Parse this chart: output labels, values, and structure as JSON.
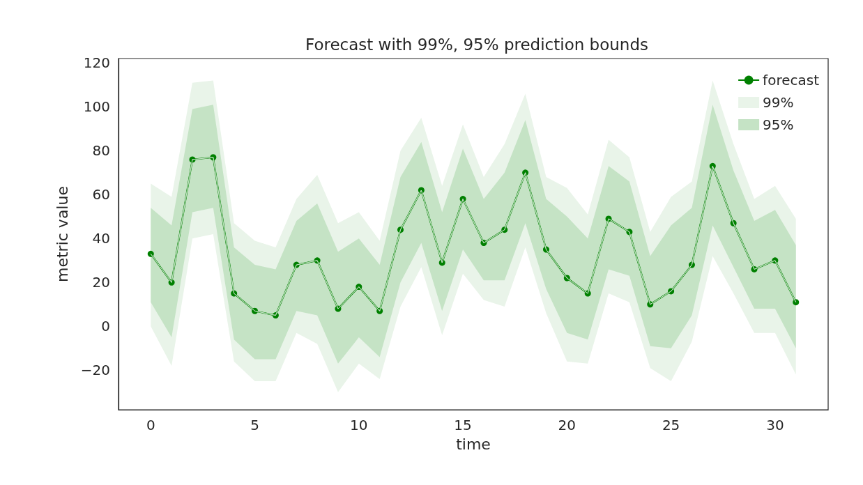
{
  "chart_data": {
    "type": "line",
    "title": "Forecast with 99%, 95% prediction bounds",
    "xlabel": "time",
    "ylabel": "metric value",
    "x": [
      0,
      1,
      2,
      3,
      4,
      5,
      6,
      7,
      8,
      9,
      10,
      11,
      12,
      13,
      14,
      15,
      16,
      17,
      18,
      19,
      20,
      21,
      22,
      23,
      24,
      25,
      26,
      27,
      28,
      29,
      30,
      31
    ],
    "series": [
      {
        "name": "forecast",
        "color": "#008000",
        "marker": "circle",
        "values": [
          33,
          20,
          76,
          77,
          15,
          7,
          5,
          28,
          30,
          8,
          18,
          7,
          44,
          62,
          29,
          58,
          38,
          44,
          70,
          35,
          22,
          15,
          49,
          43,
          10,
          16,
          28,
          73,
          47,
          26,
          30,
          11
        ]
      },
      {
        "name": "99%",
        "color": "#e9f4e9",
        "values": [
          33,
          20,
          76,
          77,
          15,
          7,
          5,
          28,
          30,
          8,
          18,
          7,
          44,
          62,
          29,
          58,
          38,
          44,
          70,
          35,
          22,
          15,
          49,
          43,
          10,
          16,
          28,
          73,
          47,
          26,
          30,
          11
        ],
        "lower": [
          0,
          -18,
          40,
          42,
          -16,
          -25,
          -25,
          -3,
          -8,
          -30,
          -17,
          -24,
          9,
          27,
          -4,
          24,
          12,
          9,
          36,
          6,
          -16,
          -17,
          15,
          11,
          -19,
          -25,
          -7,
          32,
          15,
          -3,
          -3,
          -22
        ],
        "upper": [
          65,
          59,
          111,
          112,
          47,
          39,
          36,
          58,
          69,
          47,
          52,
          39,
          80,
          95,
          64,
          92,
          68,
          83,
          106,
          68,
          63,
          51,
          85,
          77,
          43,
          59,
          66,
          112,
          83,
          58,
          64,
          49
        ]
      },
      {
        "name": "95%",
        "color": "#c5e3c5",
        "values": [
          33,
          20,
          76,
          77,
          15,
          7,
          5,
          28,
          30,
          8,
          18,
          7,
          44,
          62,
          29,
          58,
          38,
          44,
          70,
          35,
          22,
          15,
          49,
          43,
          10,
          16,
          28,
          73,
          47,
          26,
          30,
          11
        ],
        "lower": [
          11,
          -5,
          52,
          54,
          -6,
          -15,
          -15,
          7,
          5,
          -17,
          -5,
          -14,
          20,
          38,
          7,
          35,
          21,
          21,
          47,
          17,
          -3,
          -6,
          26,
          23,
          -9,
          -10,
          5,
          46,
          27,
          8,
          8,
          -10
        ],
        "upper": [
          54,
          46,
          99,
          101,
          36,
          28,
          26,
          48,
          56,
          34,
          40,
          28,
          68,
          84,
          52,
          81,
          58,
          70,
          94,
          58,
          50,
          40,
          73,
          66,
          32,
          46,
          54,
          101,
          71,
          48,
          53,
          37
        ]
      }
    ],
    "xlim": [
      -1.55,
      32.55
    ],
    "xticks": [
      0,
      5,
      10,
      15,
      20,
      25,
      30
    ],
    "ylim": [
      -38,
      122
    ],
    "yticks": [
      {
        "value": -20,
        "label": "−20"
      },
      0,
      20,
      40,
      60,
      80,
      100,
      120
    ],
    "legend": "top right"
  }
}
